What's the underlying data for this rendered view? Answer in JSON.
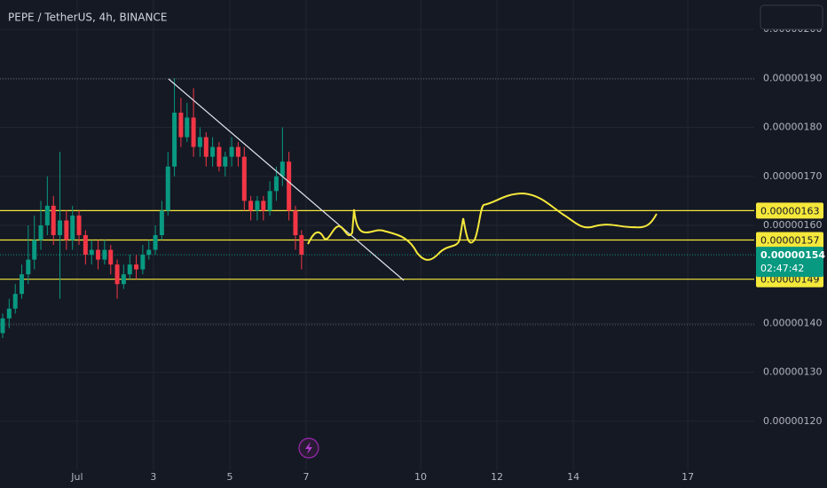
{
  "chart_data": {
    "type": "candlestick",
    "title": "PEPE / TetherUS, 4h, BINANCE",
    "x": [
      -0.95,
      -0.78,
      -0.62,
      -0.45,
      -0.28,
      -0.12,
      0.05,
      0.22,
      0.38,
      0.55,
      0.72,
      0.88,
      1.05,
      1.22,
      1.38,
      1.55,
      1.72,
      1.88,
      2.05,
      2.22,
      2.38,
      2.55,
      2.72,
      2.88,
      3.05,
      3.22,
      3.38,
      3.55,
      3.72,
      3.88,
      4.05,
      4.22,
      4.38,
      4.55,
      4.72,
      4.88,
      5.05,
      5.22,
      5.38,
      5.55,
      5.72,
      5.88,
      6.05,
      6.22,
      6.38,
      6.55,
      6.72,
      6.88
    ],
    "open": [
      1.38e-06,
      1.41e-06,
      1.43e-06,
      1.46e-06,
      1.5e-06,
      1.53e-06,
      1.57e-06,
      1.6e-06,
      1.64e-06,
      1.58e-06,
      1.61e-06,
      1.57e-06,
      1.62e-06,
      1.58e-06,
      1.54e-06,
      1.55e-06,
      1.53e-06,
      1.55e-06,
      1.52e-06,
      1.48e-06,
      1.5e-06,
      1.52e-06,
      1.51e-06,
      1.54e-06,
      1.55e-06,
      1.58e-06,
      1.63e-06,
      1.72e-06,
      1.83e-06,
      1.78e-06,
      1.82e-06,
      1.76e-06,
      1.78e-06,
      1.74e-06,
      1.76e-06,
      1.72e-06,
      1.74e-06,
      1.76e-06,
      1.74e-06,
      1.65e-06,
      1.63e-06,
      1.65e-06,
      1.63e-06,
      1.67e-06,
      1.7e-06,
      1.73e-06,
      1.63e-06,
      1.58e-06
    ],
    "high": [
      1.42e-06,
      1.45e-06,
      1.48e-06,
      1.52e-06,
      1.6e-06,
      1.62e-06,
      1.65e-06,
      1.7e-06,
      1.66e-06,
      1.75e-06,
      1.63e-06,
      1.64e-06,
      1.63e-06,
      1.59e-06,
      1.57e-06,
      1.57e-06,
      1.57e-06,
      1.56e-06,
      1.53e-06,
      1.52e-06,
      1.54e-06,
      1.54e-06,
      1.56e-06,
      1.57e-06,
      1.6e-06,
      1.65e-06,
      1.75e-06,
      1.9e-06,
      1.86e-06,
      1.85e-06,
      1.88e-06,
      1.8e-06,
      1.79e-06,
      1.78e-06,
      1.77e-06,
      1.75e-06,
      1.78e-06,
      1.77e-06,
      1.76e-06,
      1.66e-06,
      1.66e-06,
      1.66e-06,
      1.69e-06,
      1.72e-06,
      1.8e-06,
      1.75e-06,
      1.64e-06,
      1.59e-06
    ],
    "low": [
      1.37e-06,
      1.39e-06,
      1.42e-06,
      1.45e-06,
      1.48e-06,
      1.51e-06,
      1.55e-06,
      1.58e-06,
      1.56e-06,
      1.45e-06,
      1.55e-06,
      1.55e-06,
      1.56e-06,
      1.52e-06,
      1.52e-06,
      1.51e-06,
      1.52e-06,
      1.5e-06,
      1.45e-06,
      1.47e-06,
      1.49e-06,
      1.49e-06,
      1.5e-06,
      1.53e-06,
      1.54e-06,
      1.57e-06,
      1.62e-06,
      1.7e-06,
      1.76e-06,
      1.77e-06,
      1.74e-06,
      1.74e-06,
      1.72e-06,
      1.72e-06,
      1.71e-06,
      1.7e-06,
      1.72e-06,
      1.72e-06,
      1.63e-06,
      1.61e-06,
      1.61e-06,
      1.61e-06,
      1.62e-06,
      1.65e-06,
      1.68e-06,
      1.61e-06,
      1.55e-06,
      1.51e-06
    ],
    "close": [
      1.41e-06,
      1.43e-06,
      1.46e-06,
      1.5e-06,
      1.53e-06,
      1.57e-06,
      1.6e-06,
      1.64e-06,
      1.58e-06,
      1.61e-06,
      1.57e-06,
      1.62e-06,
      1.58e-06,
      1.54e-06,
      1.55e-06,
      1.53e-06,
      1.55e-06,
      1.52e-06,
      1.48e-06,
      1.5e-06,
      1.52e-06,
      1.51e-06,
      1.54e-06,
      1.55e-06,
      1.58e-06,
      1.63e-06,
      1.72e-06,
      1.83e-06,
      1.78e-06,
      1.82e-06,
      1.76e-06,
      1.78e-06,
      1.74e-06,
      1.76e-06,
      1.72e-06,
      1.74e-06,
      1.76e-06,
      1.74e-06,
      1.65e-06,
      1.63e-06,
      1.65e-06,
      1.63e-06,
      1.67e-06,
      1.7e-06,
      1.73e-06,
      1.63e-06,
      1.58e-06,
      1.54e-06
    ],
    "up_color": "#089981",
    "down_color": "#f23645",
    "xlim": [
      -1.02,
      18.74
    ],
    "xticks": [
      {
        "value": 1,
        "label": "Jul"
      },
      3,
      5,
      7,
      10,
      12,
      14,
      17
    ],
    "ylim": [
      1.1e-06,
      2.06e-06
    ],
    "yticks": [
      {
        "value": 1.2e-06,
        "label": "0.00000120"
      },
      {
        "value": 1.3e-06,
        "label": "0.00000130"
      },
      {
        "value": 1.4e-06,
        "label": "0.00000140"
      },
      {
        "value": 1.6e-06,
        "label": "0.00000160"
      },
      {
        "value": 1.7e-06,
        "label": "0.00000170"
      },
      {
        "value": 1.8e-06,
        "label": "0.00000180"
      },
      {
        "value": 1.9e-06,
        "label": "0.00000190"
      },
      {
        "value": 2e-06,
        "label": "0.00000200"
      }
    ],
    "grid": true,
    "levels": [
      {
        "value": 1.63e-06,
        "label": "0.00000163"
      },
      {
        "value": 1.57e-06,
        "label": "0.00000157"
      },
      {
        "value": 1.49e-06,
        "label": "0.00000149"
      }
    ],
    "level_color": "#f5e83b",
    "last_price": {
      "value": 1.54e-06,
      "label": "0.00000154",
      "countdown": "02:47:42"
    }
  }
}
